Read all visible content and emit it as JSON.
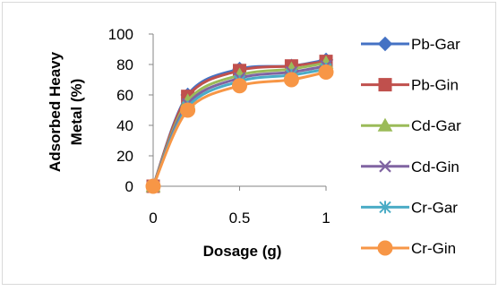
{
  "chart_data": {
    "type": "line",
    "title": "",
    "xlabel": "Dosage (g)",
    "ylabel": "Adsorbed Heavy Metal (%)",
    "ylabel_lines": [
      "Adsorbed Heavy",
      "Metal (%)"
    ],
    "xlim": [
      0,
      1
    ],
    "ylim": [
      0,
      100
    ],
    "xticks": [
      0,
      0.5,
      1
    ],
    "yticks": [
      0,
      20,
      40,
      60,
      80,
      100
    ],
    "grid": false,
    "legend_position": "right",
    "x": [
      0,
      0.2,
      0.5,
      0.8,
      1
    ],
    "series": [
      {
        "name": "Pb-Gar",
        "values": [
          0,
          60,
          77,
          79,
          83
        ],
        "color": "#4472C4",
        "marker": "diamond"
      },
      {
        "name": "Pb-Gin",
        "values": [
          0,
          59,
          76,
          79,
          82
        ],
        "color": "#C0504D",
        "marker": "square"
      },
      {
        "name": "Cd-Gar",
        "values": [
          0,
          56,
          73,
          77,
          81
        ],
        "color": "#9BBB59",
        "marker": "triangle"
      },
      {
        "name": "Cd-Gin",
        "values": [
          0,
          54,
          71,
          75,
          79
        ],
        "color": "#8064A2",
        "marker": "x"
      },
      {
        "name": "Cr-Gar",
        "values": [
          0,
          52,
          69,
          73,
          77
        ],
        "color": "#4BACC6",
        "marker": "star"
      },
      {
        "name": "Cr-Gin",
        "values": [
          0,
          50,
          66,
          70,
          75
        ],
        "color": "#F79646",
        "marker": "circle"
      }
    ]
  }
}
